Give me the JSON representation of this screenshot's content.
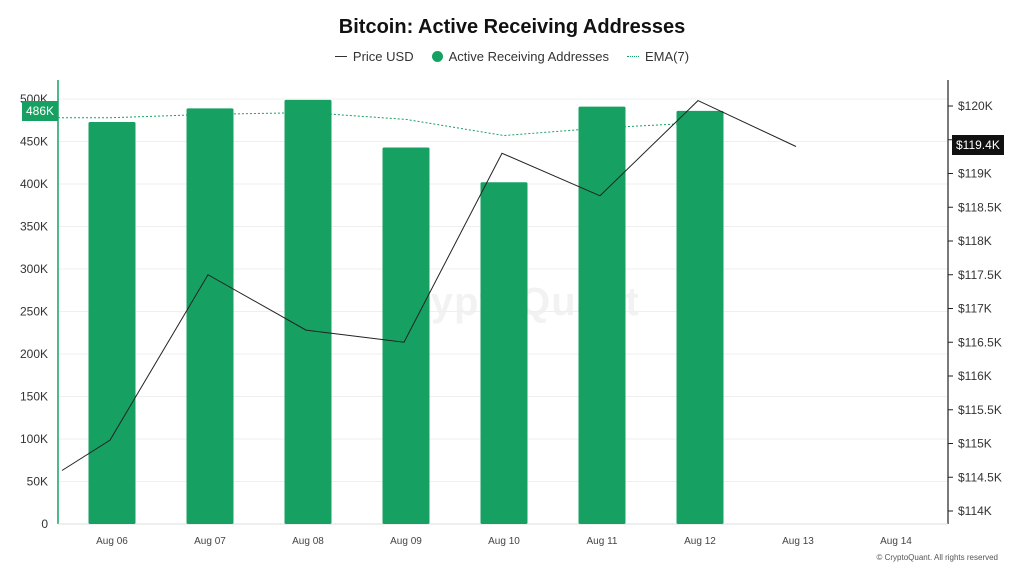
{
  "title": "Bitcoin: Active Receiving Addresses",
  "legend": {
    "price": "Price USD",
    "addresses": "Active Receiving Addresses",
    "ema": "EMA(7)"
  },
  "colors": {
    "bar": "#16a163",
    "price_line": "#222222",
    "ema_line": "#16a163",
    "badge_left": "#16a163",
    "badge_right": "#111111"
  },
  "badges": {
    "left": "486K",
    "right": "$119.4K"
  },
  "watermark": "CryptoQuant",
  "footer": "© CryptoQuant. All rights reserved",
  "chart_data": {
    "type": "bar",
    "title": "Bitcoin: Active Receiving Addresses",
    "categories": [
      "Aug 06",
      "Aug 07",
      "Aug 08",
      "Aug 09",
      "Aug 10",
      "Aug 11",
      "Aug 12",
      "Aug 13",
      "Aug 14"
    ],
    "series": [
      {
        "name": "Active Receiving Addresses",
        "type": "bar",
        "axis": "left",
        "values": [
          473000,
          489000,
          499000,
          443000,
          402000,
          491000,
          486000,
          null,
          null
        ]
      },
      {
        "name": "Price USD",
        "type": "line",
        "axis": "right",
        "x_offsets": [
          -0.5,
          0,
          1,
          2,
          3,
          4,
          5,
          6,
          7
        ],
        "values": [
          114600,
          115050,
          117500,
          116680,
          116500,
          119300,
          118670,
          120080,
          119400
        ]
      },
      {
        "name": "EMA(7)",
        "type": "line",
        "axis": "left",
        "style": "dotted",
        "x_offsets": [
          -0.5,
          0,
          1,
          2,
          3,
          4,
          5,
          6
        ],
        "values": [
          478000,
          478000,
          482000,
          484000,
          476000,
          457000,
          466000,
          472000
        ]
      }
    ],
    "y_left": {
      "ylim": [
        0,
        505000
      ],
      "ticks": [
        0,
        50000,
        100000,
        150000,
        200000,
        250000,
        300000,
        350000,
        400000,
        450000,
        500000
      ],
      "tick_labels": [
        "0",
        "50K",
        "100K",
        "150K",
        "200K",
        "250K",
        "300K",
        "350K",
        "400K",
        "450K",
        "500K"
      ]
    },
    "y_right": {
      "ylim": [
        113990,
        120320
      ],
      "ticks": [
        114000,
        114500,
        115000,
        115500,
        116000,
        116500,
        117000,
        117500,
        118000,
        118500,
        119000,
        119500,
        120000
      ],
      "tick_labels": [
        "$114K",
        "$114.5K",
        "$115K",
        "$115.5K",
        "$116K",
        "$116.5K",
        "$117K",
        "$117.5K",
        "$118K",
        "$118.5K",
        "$119K",
        "$119.5K",
        "$120K"
      ]
    },
    "grid": true,
    "legend_position": "top-center"
  }
}
